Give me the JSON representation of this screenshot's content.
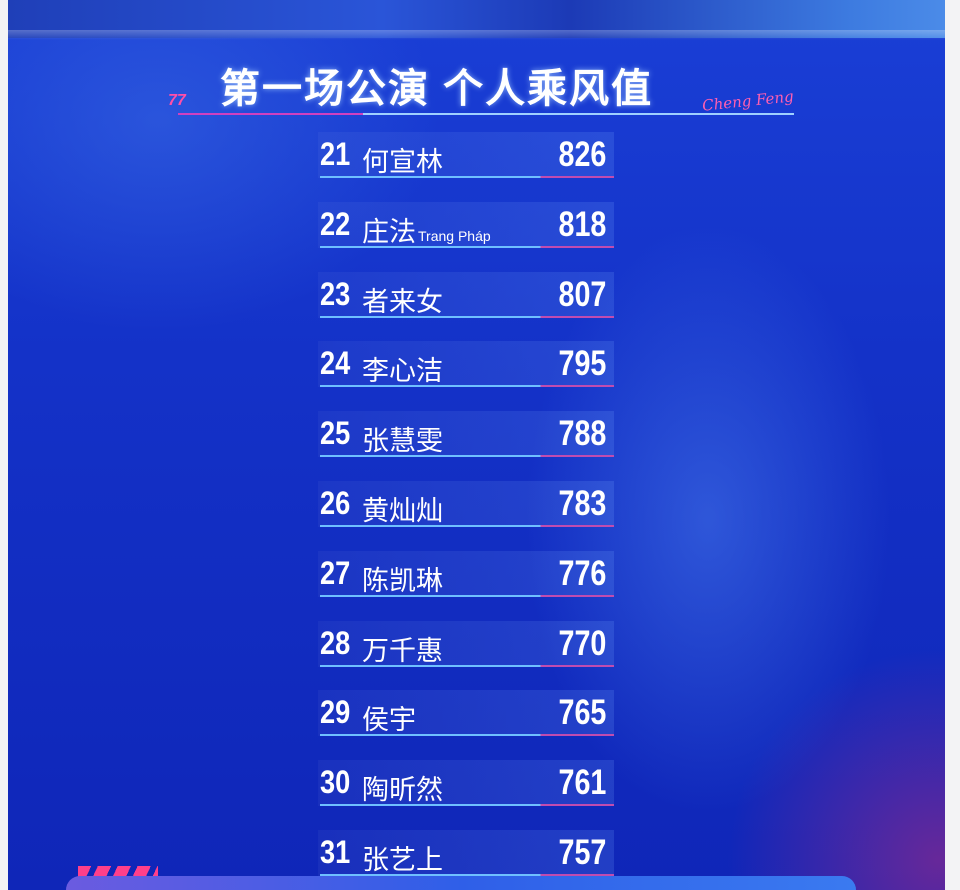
{
  "title": "第一场公演 个人乘风值",
  "brand_script": "Cheng Feng",
  "colors": {
    "background": "#1432c8",
    "accent_pink": "#ff4fa8",
    "accent_cyan": "#6fc0ff"
  },
  "rankings": [
    {
      "rank": "21",
      "name": "何宣林",
      "sub": "",
      "score": "826"
    },
    {
      "rank": "22",
      "name": "庄法",
      "sub": "Trang Pháp",
      "score": "818"
    },
    {
      "rank": "23",
      "name": "者来女",
      "sub": "",
      "score": "807"
    },
    {
      "rank": "24",
      "name": "李心洁",
      "sub": "",
      "score": "795"
    },
    {
      "rank": "25",
      "name": "张慧雯",
      "sub": "",
      "score": "788"
    },
    {
      "rank": "26",
      "name": "黄灿灿",
      "sub": "",
      "score": "783"
    },
    {
      "rank": "27",
      "name": "陈凯琳",
      "sub": "",
      "score": "776"
    },
    {
      "rank": "28",
      "name": "万千惠",
      "sub": "",
      "score": "770"
    },
    {
      "rank": "29",
      "name": "侯宇",
      "sub": "",
      "score": "765"
    },
    {
      "rank": "30",
      "name": "陶昕然",
      "sub": "",
      "score": "761"
    },
    {
      "rank": "31",
      "name": "张艺上",
      "sub": "",
      "score": "757"
    }
  ]
}
